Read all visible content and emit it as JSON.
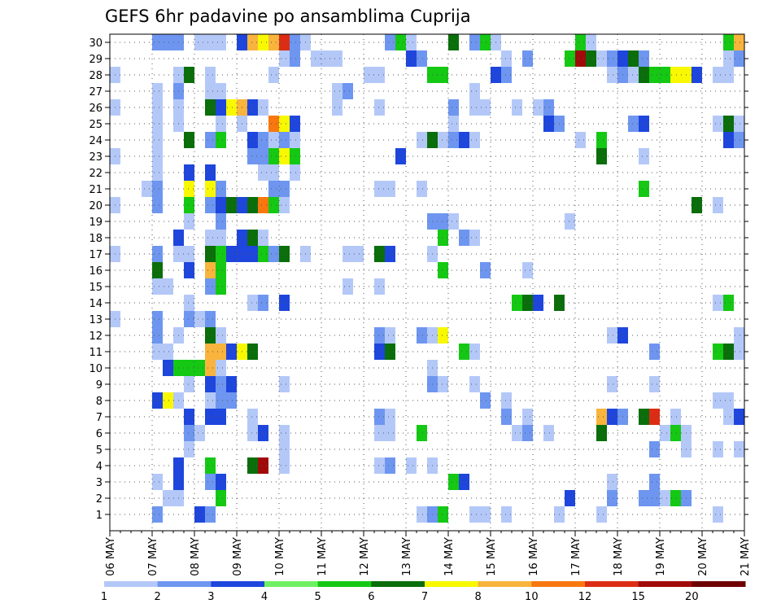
{
  "chart_data": {
    "type": "heatmap",
    "title": "GEFS 6hr padavine po ansamblima Cuprija",
    "xlabel": "",
    "ylabel": "",
    "x_tick_labels": [
      "06 MAY",
      "07 MAY",
      "08 MAY",
      "09 MAY",
      "10 MAY",
      "11 MAY",
      "12 MAY",
      "13 MAY",
      "14 MAY",
      "15 MAY",
      "16 MAY",
      "17 MAY",
      "18 MAY",
      "19 MAY",
      "20 MAY",
      "21 MAY"
    ],
    "y_tick_labels": [
      "1",
      "2",
      "3",
      "4",
      "5",
      "6",
      "7",
      "8",
      "9",
      "10",
      "11",
      "12",
      "13",
      "14",
      "15",
      "16",
      "17",
      "18",
      "19",
      "20",
      "21",
      "22",
      "23",
      "24",
      "25",
      "26",
      "27",
      "28",
      "29",
      "30"
    ],
    "xlim": [
      0,
      60
    ],
    "ylim": [
      0.5,
      30.5
    ],
    "grid": true,
    "legend": {
      "placement": "bottom",
      "bounds": [
        "1",
        "2",
        "3",
        "4",
        "5",
        "6",
        "7",
        "8",
        "10",
        "12",
        "15",
        "20"
      ],
      "colors": [
        "#b4c8f8",
        "#6e96f0",
        "#1e46dc",
        "#6ef062",
        "#14c814",
        "#0a6e0a",
        "#f8f800",
        "#f8b43c",
        "#f8780f",
        "#dc2d14",
        "#a00a0a",
        "#6e0000"
      ]
    },
    "cells_note": "each cell: [forecast step index (6h), ensemble member, color class index 0-11]",
    "cells": [
      [
        5,
        30,
        1
      ],
      [
        6,
        30,
        1
      ],
      [
        7,
        30,
        1
      ],
      [
        9,
        30,
        0
      ],
      [
        10,
        30,
        0
      ],
      [
        11,
        30,
        0
      ],
      [
        13,
        30,
        2
      ],
      [
        14,
        30,
        7
      ],
      [
        15,
        30,
        6
      ],
      [
        16,
        30,
        7
      ],
      [
        17,
        30,
        9
      ],
      [
        18,
        30,
        1
      ],
      [
        19,
        30,
        0
      ],
      [
        27,
        30,
        1
      ],
      [
        28,
        30,
        4
      ],
      [
        29,
        30,
        0
      ],
      [
        33,
        30,
        5
      ],
      [
        35,
        30,
        1
      ],
      [
        36,
        30,
        4
      ],
      [
        37,
        30,
        0
      ],
      [
        45,
        30,
        4
      ],
      [
        46,
        30,
        0
      ],
      [
        59,
        30,
        4
      ],
      [
        60,
        30,
        7
      ],
      [
        17,
        29,
        0
      ],
      [
        18,
        29,
        1
      ],
      [
        20,
        29,
        0
      ],
      [
        21,
        29,
        0
      ],
      [
        22,
        29,
        0
      ],
      [
        29,
        29,
        2
      ],
      [
        30,
        29,
        1
      ],
      [
        38,
        29,
        0
      ],
      [
        40,
        29,
        1
      ],
      [
        44,
        29,
        4
      ],
      [
        45,
        29,
        10
      ],
      [
        46,
        29,
        5
      ],
      [
        47,
        29,
        0
      ],
      [
        48,
        29,
        1
      ],
      [
        49,
        29,
        2
      ],
      [
        50,
        29,
        5
      ],
      [
        51,
        29,
        1
      ],
      [
        59,
        29,
        0
      ],
      [
        60,
        29,
        1
      ],
      [
        1,
        28,
        0
      ],
      [
        7,
        28,
        0
      ],
      [
        8,
        28,
        5
      ],
      [
        10,
        28,
        0
      ],
      [
        16,
        28,
        0
      ],
      [
        25,
        28,
        0
      ],
      [
        26,
        28,
        0
      ],
      [
        31,
        28,
        4
      ],
      [
        32,
        28,
        4
      ],
      [
        37,
        28,
        2
      ],
      [
        38,
        28,
        1
      ],
      [
        48,
        28,
        0
      ],
      [
        49,
        28,
        1
      ],
      [
        50,
        28,
        0
      ],
      [
        51,
        28,
        5
      ],
      [
        52,
        28,
        4
      ],
      [
        53,
        28,
        4
      ],
      [
        54,
        28,
        6
      ],
      [
        55,
        28,
        6
      ],
      [
        56,
        28,
        2
      ],
      [
        58,
        28,
        0
      ],
      [
        59,
        28,
        0
      ],
      [
        5,
        27,
        0
      ],
      [
        7,
        27,
        1
      ],
      [
        10,
        27,
        0
      ],
      [
        11,
        27,
        0
      ],
      [
        22,
        27,
        0
      ],
      [
        23,
        27,
        1
      ],
      [
        35,
        27,
        0
      ],
      [
        1,
        26,
        0
      ],
      [
        5,
        26,
        0
      ],
      [
        7,
        26,
        0
      ],
      [
        10,
        26,
        5
      ],
      [
        11,
        26,
        2
      ],
      [
        12,
        26,
        6
      ],
      [
        13,
        26,
        7
      ],
      [
        14,
        26,
        2
      ],
      [
        15,
        26,
        0
      ],
      [
        22,
        26,
        0
      ],
      [
        26,
        26,
        0
      ],
      [
        33,
        26,
        1
      ],
      [
        35,
        26,
        0
      ],
      [
        36,
        26,
        0
      ],
      [
        39,
        26,
        0
      ],
      [
        41,
        26,
        0
      ],
      [
        42,
        26,
        1
      ],
      [
        5,
        25,
        0
      ],
      [
        7,
        25,
        0
      ],
      [
        11,
        25,
        0
      ],
      [
        13,
        25,
        0
      ],
      [
        16,
        25,
        8
      ],
      [
        17,
        25,
        6
      ],
      [
        18,
        25,
        2
      ],
      [
        33,
        25,
        0
      ],
      [
        42,
        25,
        2
      ],
      [
        43,
        25,
        1
      ],
      [
        50,
        25,
        1
      ],
      [
        51,
        25,
        2
      ],
      [
        58,
        25,
        0
      ],
      [
        59,
        25,
        5
      ],
      [
        60,
        25,
        0
      ],
      [
        5,
        24,
        0
      ],
      [
        8,
        24,
        5
      ],
      [
        10,
        24,
        1
      ],
      [
        11,
        24,
        4
      ],
      [
        14,
        24,
        2
      ],
      [
        15,
        24,
        1
      ],
      [
        16,
        24,
        0
      ],
      [
        17,
        24,
        1
      ],
      [
        18,
        24,
        0
      ],
      [
        30,
        24,
        0
      ],
      [
        31,
        24,
        5
      ],
      [
        32,
        24,
        0
      ],
      [
        33,
        24,
        1
      ],
      [
        34,
        24,
        2
      ],
      [
        35,
        24,
        0
      ],
      [
        45,
        24,
        0
      ],
      [
        47,
        24,
        4
      ],
      [
        59,
        24,
        2
      ],
      [
        60,
        24,
        1
      ],
      [
        1,
        23,
        0
      ],
      [
        5,
        23,
        0
      ],
      [
        14,
        23,
        1
      ],
      [
        15,
        23,
        1
      ],
      [
        16,
        23,
        4
      ],
      [
        17,
        23,
        6
      ],
      [
        18,
        23,
        4
      ],
      [
        28,
        23,
        2
      ],
      [
        47,
        23,
        5
      ],
      [
        51,
        23,
        0
      ],
      [
        5,
        22,
        0
      ],
      [
        8,
        22,
        2
      ],
      [
        10,
        22,
        2
      ],
      [
        15,
        22,
        0
      ],
      [
        16,
        22,
        0
      ],
      [
        18,
        22,
        0
      ],
      [
        4,
        21,
        0
      ],
      [
        5,
        21,
        1
      ],
      [
        8,
        21,
        6
      ],
      [
        10,
        21,
        6
      ],
      [
        11,
        21,
        1
      ],
      [
        16,
        21,
        1
      ],
      [
        17,
        21,
        1
      ],
      [
        26,
        21,
        0
      ],
      [
        27,
        21,
        0
      ],
      [
        30,
        21,
        0
      ],
      [
        51,
        21,
        4
      ],
      [
        1,
        20,
        0
      ],
      [
        5,
        20,
        1
      ],
      [
        8,
        20,
        4
      ],
      [
        10,
        20,
        1
      ],
      [
        11,
        20,
        2
      ],
      [
        12,
        20,
        5
      ],
      [
        13,
        20,
        2
      ],
      [
        14,
        20,
        5
      ],
      [
        15,
        20,
        8
      ],
      [
        16,
        20,
        4
      ],
      [
        17,
        20,
        0
      ],
      [
        56,
        20,
        5
      ],
      [
        58,
        20,
        0
      ],
      [
        8,
        19,
        0
      ],
      [
        11,
        19,
        1
      ],
      [
        31,
        19,
        1
      ],
      [
        32,
        19,
        1
      ],
      [
        33,
        19,
        0
      ],
      [
        44,
        19,
        0
      ],
      [
        7,
        18,
        2
      ],
      [
        10,
        18,
        0
      ],
      [
        11,
        18,
        0
      ],
      [
        13,
        18,
        2
      ],
      [
        14,
        18,
        5
      ],
      [
        15,
        18,
        0
      ],
      [
        32,
        18,
        4
      ],
      [
        34,
        18,
        1
      ],
      [
        35,
        18,
        0
      ],
      [
        1,
        17,
        0
      ],
      [
        5,
        17,
        1
      ],
      [
        7,
        17,
        0
      ],
      [
        8,
        17,
        0
      ],
      [
        10,
        17,
        5
      ],
      [
        11,
        17,
        4
      ],
      [
        12,
        17,
        2
      ],
      [
        13,
        17,
        2
      ],
      [
        14,
        17,
        2
      ],
      [
        15,
        17,
        4
      ],
      [
        16,
        17,
        1
      ],
      [
        17,
        17,
        5
      ],
      [
        19,
        17,
        0
      ],
      [
        23,
        17,
        0
      ],
      [
        24,
        17,
        0
      ],
      [
        26,
        17,
        5
      ],
      [
        27,
        17,
        2
      ],
      [
        31,
        17,
        0
      ],
      [
        5,
        16,
        5
      ],
      [
        8,
        16,
        2
      ],
      [
        10,
        16,
        7
      ],
      [
        11,
        16,
        4
      ],
      [
        32,
        16,
        4
      ],
      [
        36,
        16,
        1
      ],
      [
        40,
        16,
        0
      ],
      [
        5,
        15,
        0
      ],
      [
        6,
        15,
        0
      ],
      [
        10,
        15,
        1
      ],
      [
        11,
        15,
        4
      ],
      [
        23,
        15,
        0
      ],
      [
        26,
        15,
        0
      ],
      [
        8,
        14,
        0
      ],
      [
        14,
        14,
        0
      ],
      [
        15,
        14,
        1
      ],
      [
        17,
        14,
        2
      ],
      [
        39,
        14,
        4
      ],
      [
        40,
        14,
        5
      ],
      [
        41,
        14,
        2
      ],
      [
        43,
        14,
        5
      ],
      [
        58,
        14,
        0
      ],
      [
        59,
        14,
        4
      ],
      [
        1,
        13,
        0
      ],
      [
        5,
        13,
        1
      ],
      [
        8,
        13,
        1
      ],
      [
        9,
        13,
        0
      ],
      [
        10,
        13,
        1
      ],
      [
        5,
        12,
        1
      ],
      [
        7,
        12,
        0
      ],
      [
        10,
        12,
        5
      ],
      [
        11,
        12,
        0
      ],
      [
        26,
        12,
        1
      ],
      [
        27,
        12,
        0
      ],
      [
        30,
        12,
        1
      ],
      [
        31,
        12,
        0
      ],
      [
        32,
        12,
        6
      ],
      [
        48,
        12,
        0
      ],
      [
        49,
        12,
        2
      ],
      [
        60,
        12,
        0
      ],
      [
        5,
        11,
        0
      ],
      [
        6,
        11,
        0
      ],
      [
        10,
        11,
        7
      ],
      [
        11,
        11,
        7
      ],
      [
        12,
        11,
        2
      ],
      [
        13,
        11,
        6
      ],
      [
        14,
        11,
        5
      ],
      [
        26,
        11,
        2
      ],
      [
        27,
        11,
        5
      ],
      [
        34,
        11,
        4
      ],
      [
        35,
        11,
        0
      ],
      [
        52,
        11,
        1
      ],
      [
        58,
        11,
        4
      ],
      [
        59,
        11,
        5
      ],
      [
        60,
        11,
        0
      ],
      [
        6,
        10,
        2
      ],
      [
        7,
        10,
        4
      ],
      [
        8,
        10,
        4
      ],
      [
        9,
        10,
        4
      ],
      [
        10,
        10,
        7
      ],
      [
        11,
        10,
        0
      ],
      [
        31,
        10,
        0
      ],
      [
        8,
        9,
        0
      ],
      [
        10,
        9,
        2
      ],
      [
        11,
        9,
        1
      ],
      [
        12,
        9,
        2
      ],
      [
        17,
        9,
        0
      ],
      [
        31,
        9,
        1
      ],
      [
        32,
        9,
        0
      ],
      [
        35,
        9,
        0
      ],
      [
        48,
        9,
        0
      ],
      [
        52,
        9,
        0
      ],
      [
        5,
        8,
        2
      ],
      [
        6,
        8,
        6
      ],
      [
        7,
        8,
        0
      ],
      [
        10,
        8,
        0
      ],
      [
        11,
        8,
        1
      ],
      [
        12,
        8,
        1
      ],
      [
        36,
        8,
        1
      ],
      [
        38,
        8,
        0
      ],
      [
        58,
        8,
        0
      ],
      [
        59,
        8,
        0
      ],
      [
        8,
        7,
        2
      ],
      [
        10,
        7,
        2
      ],
      [
        11,
        7,
        2
      ],
      [
        14,
        7,
        0
      ],
      [
        26,
        7,
        1
      ],
      [
        27,
        7,
        0
      ],
      [
        38,
        7,
        1
      ],
      [
        40,
        7,
        0
      ],
      [
        47,
        7,
        7
      ],
      [
        48,
        7,
        2
      ],
      [
        49,
        7,
        1
      ],
      [
        51,
        7,
        5
      ],
      [
        52,
        7,
        9
      ],
      [
        54,
        7,
        0
      ],
      [
        59,
        7,
        0
      ],
      [
        60,
        7,
        2
      ],
      [
        8,
        6,
        1
      ],
      [
        9,
        6,
        0
      ],
      [
        14,
        6,
        0
      ],
      [
        15,
        6,
        2
      ],
      [
        17,
        6,
        0
      ],
      [
        26,
        6,
        0
      ],
      [
        27,
        6,
        0
      ],
      [
        30,
        6,
        4
      ],
      [
        39,
        6,
        0
      ],
      [
        40,
        6,
        1
      ],
      [
        42,
        6,
        0
      ],
      [
        47,
        6,
        5
      ],
      [
        53,
        6,
        0
      ],
      [
        54,
        6,
        4
      ],
      [
        55,
        6,
        0
      ],
      [
        8,
        5,
        0
      ],
      [
        17,
        5,
        0
      ],
      [
        52,
        5,
        1
      ],
      [
        55,
        5,
        0
      ],
      [
        58,
        5,
        0
      ],
      [
        60,
        5,
        0
      ],
      [
        7,
        4,
        2
      ],
      [
        10,
        4,
        4
      ],
      [
        14,
        4,
        5
      ],
      [
        15,
        4,
        10
      ],
      [
        17,
        4,
        0
      ],
      [
        26,
        4,
        0
      ],
      [
        27,
        4,
        1
      ],
      [
        29,
        4,
        0
      ],
      [
        31,
        4,
        0
      ],
      [
        5,
        3,
        0
      ],
      [
        7,
        3,
        2
      ],
      [
        10,
        3,
        1
      ],
      [
        11,
        3,
        2
      ],
      [
        33,
        3,
        4
      ],
      [
        34,
        3,
        2
      ],
      [
        48,
        3,
        0
      ],
      [
        52,
        3,
        1
      ],
      [
        6,
        2,
        0
      ],
      [
        7,
        2,
        0
      ],
      [
        11,
        2,
        4
      ],
      [
        44,
        2,
        2
      ],
      [
        48,
        2,
        1
      ],
      [
        51,
        2,
        1
      ],
      [
        52,
        2,
        1
      ],
      [
        53,
        2,
        0
      ],
      [
        54,
        2,
        4
      ],
      [
        55,
        2,
        1
      ],
      [
        5,
        1,
        1
      ],
      [
        9,
        1,
        2
      ],
      [
        10,
        1,
        1
      ],
      [
        30,
        1,
        0
      ],
      [
        31,
        1,
        1
      ],
      [
        32,
        1,
        4
      ],
      [
        35,
        1,
        0
      ],
      [
        36,
        1,
        0
      ],
      [
        38,
        1,
        0
      ],
      [
        43,
        1,
        0
      ],
      [
        47,
        1,
        0
      ],
      [
        58,
        1,
        0
      ]
    ]
  }
}
